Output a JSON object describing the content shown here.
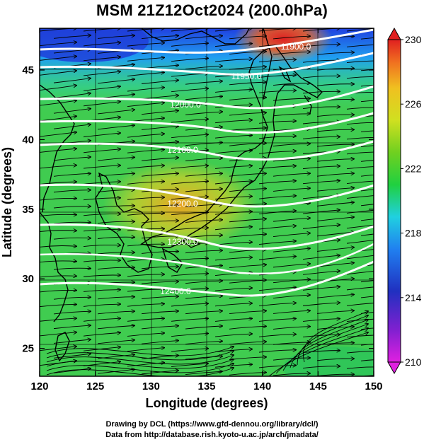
{
  "title": "MSM 21Z12Oct2024 (200.0hPa)",
  "x_axis": {
    "label": "Longitude (degrees)",
    "ticks": [
      "120",
      "125",
      "130",
      "135",
      "140",
      "145",
      "150"
    ]
  },
  "y_axis": {
    "label": "Latitude  (degrees)",
    "ticks": [
      "25",
      "30",
      "35",
      "40",
      "45"
    ]
  },
  "colorbar": {
    "ticks": [
      "210",
      "214",
      "218",
      "222",
      "226",
      "230"
    ],
    "min": 210,
    "max": 230,
    "colors": [
      "#e020e0",
      "#6020c0",
      "#2040d0",
      "#20a0f0",
      "#20e0c0",
      "#20d040",
      "#a0e020",
      "#f0e020",
      "#f09020",
      "#e03020"
    ]
  },
  "contours": [
    {
      "label": "11900.0"
    },
    {
      "label": "11950.0"
    },
    {
      "label": "12000.0"
    },
    {
      "label": "12100.0"
    },
    {
      "label": "12200.0"
    },
    {
      "label": "12300.0"
    },
    {
      "label": "12400.0"
    }
  ],
  "map": {
    "lon_range": [
      120,
      150
    ],
    "lat_range": [
      23,
      48
    ],
    "background_colors": {
      "cold": "#2050e0",
      "cool": "#30c0f0",
      "mid": "#40d060",
      "warm": "#f0c020",
      "hot": "#e04020"
    },
    "wind_direction": "eastward"
  },
  "credits": {
    "line1": "Drawing by DCL (https://www.gfd-dennou.org/library/dcl/)",
    "line2": "Data from http://database.rish.kyoto-u.ac.jp/arch/jmadata/"
  }
}
